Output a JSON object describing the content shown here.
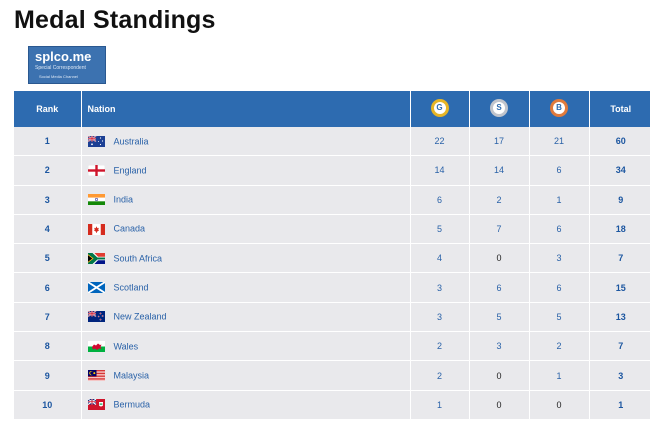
{
  "title": "Medal Standings",
  "logo": {
    "line1": "splco.me",
    "line2": "Special Correspondent",
    "line3": "Social Media Channel"
  },
  "headers": {
    "rank": "Rank",
    "nation": "Nation",
    "gold": "G",
    "silver": "S",
    "bronze": "B",
    "total": "Total"
  },
  "colors": {
    "header_bg": "#2d6bb0",
    "row_bg": "#e9e9ec",
    "gold": "#e6b526",
    "silver": "#c0c4cc",
    "bronze": "#e07a3c"
  },
  "rows": [
    {
      "rank": "1",
      "nation": "Australia",
      "flag": "australia-flag",
      "gold": "22",
      "silver": "17",
      "bronze": "21",
      "total": "60"
    },
    {
      "rank": "2",
      "nation": "England",
      "flag": "england-flag",
      "gold": "14",
      "silver": "14",
      "bronze": "6",
      "total": "34"
    },
    {
      "rank": "3",
      "nation": "India",
      "flag": "india-flag",
      "gold": "6",
      "silver": "2",
      "bronze": "1",
      "total": "9"
    },
    {
      "rank": "4",
      "nation": "Canada",
      "flag": "canada-flag",
      "gold": "5",
      "silver": "7",
      "bronze": "6",
      "total": "18"
    },
    {
      "rank": "5",
      "nation": "South Africa",
      "flag": "south-africa-flag",
      "gold": "4",
      "silver": "0",
      "bronze": "3",
      "total": "7"
    },
    {
      "rank": "6",
      "nation": "Scotland",
      "flag": "scotland-flag",
      "gold": "3",
      "silver": "6",
      "bronze": "6",
      "total": "15"
    },
    {
      "rank": "7",
      "nation": "New Zealand",
      "flag": "new-zealand-flag",
      "gold": "3",
      "silver": "5",
      "bronze": "5",
      "total": "13"
    },
    {
      "rank": "8",
      "nation": "Wales",
      "flag": "wales-flag",
      "gold": "2",
      "silver": "3",
      "bronze": "2",
      "total": "7"
    },
    {
      "rank": "9",
      "nation": "Malaysia",
      "flag": "malaysia-flag",
      "gold": "2",
      "silver": "0",
      "bronze": "1",
      "total": "3"
    },
    {
      "rank": "10",
      "nation": "Bermuda",
      "flag": "bermuda-flag",
      "gold": "1",
      "silver": "0",
      "bronze": "0",
      "total": "1"
    }
  ]
}
